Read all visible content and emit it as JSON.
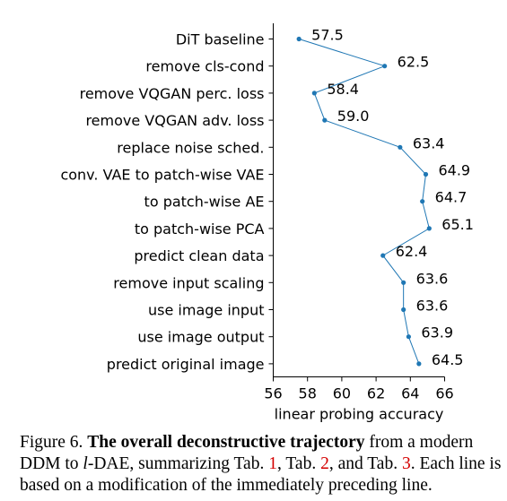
{
  "chart_data": {
    "type": "line",
    "orientation": "horizontal",
    "categories": [
      "DiT baseline",
      "remove cls-cond",
      "remove VQGAN perc. loss",
      "remove VQGAN adv. loss",
      "replace noise sched.",
      "conv. VAE to patch-wise VAE",
      "to patch-wise AE",
      "to patch-wise PCA",
      "predict clean data",
      "remove input scaling",
      "use image input",
      "use image output",
      "predict original image"
    ],
    "values": [
      57.5,
      62.5,
      58.4,
      59.0,
      63.4,
      64.9,
      64.7,
      65.1,
      62.4,
      63.6,
      63.6,
      63.9,
      64.5
    ],
    "value_labels": [
      "57.5",
      "62.5",
      "58.4",
      "59.0",
      "63.4",
      "64.9",
      "64.7",
      "65.1",
      "62.4",
      "63.6",
      "63.6",
      "63.9",
      "64.5"
    ],
    "xlabel": "linear probing accuracy",
    "xlim": [
      56,
      66
    ],
    "xticks": [
      "56",
      "58",
      "60",
      "62",
      "64",
      "66"
    ],
    "color": "#1f77b4"
  },
  "caption": {
    "prefix": "Figure 6. ",
    "bold": "The overall deconstructive trajectory",
    "t1": " from a modern DDM to ",
    "ital": "l",
    "t2": "-DAE, summarizing Tab. ",
    "ref1": "1",
    "t3": ", Tab. ",
    "ref2": "2",
    "t4": ", and Tab. ",
    "ref3": "3",
    "t5": ". Each line is based on a modification of the immediately preceding line."
  }
}
